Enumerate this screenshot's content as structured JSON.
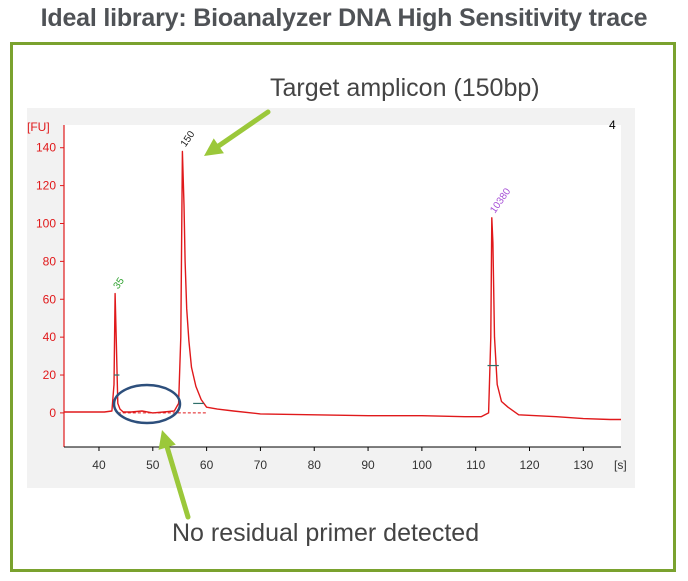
{
  "slide": {
    "title": "Ideal library: Bioanalyzer DNA High Sensitivity trace",
    "callout_target": "Target amplicon (150bp)",
    "callout_primer": "No residual primer detected"
  },
  "colors": {
    "frame": "#7aa22e",
    "arrow": "#9bc83a",
    "trace": "#e0191b",
    "y_axis": "#e0191b",
    "ellipse": "#2d4f7c",
    "marker_lower": "#2ca02c",
    "marker_upper": "#a64fd6",
    "title_text": "#4f5256"
  },
  "chart_data": {
    "type": "line",
    "ylabel": "[FU]",
    "xlabel": "[s]",
    "corner_label": "4",
    "xlim": [
      33.5,
      137
    ],
    "ylim": [
      -18,
      152
    ],
    "x_ticks": [
      40,
      50,
      60,
      70,
      80,
      90,
      100,
      110,
      120,
      130
    ],
    "y_ticks": [
      0,
      20,
      40,
      60,
      80,
      100,
      120,
      140
    ],
    "grid": false,
    "series": [
      {
        "x": [
          33.5,
          38,
          41,
          42.4,
          42.8,
          43.0,
          43.2,
          43.5,
          43.9,
          44.5,
          46,
          48,
          50,
          52,
          54,
          54.8,
          55.2,
          55.5,
          55.8,
          56.0,
          56.3,
          56.7,
          57.2,
          58,
          59,
          60,
          62,
          65,
          70,
          80,
          90,
          100,
          108,
          111,
          112.4,
          112.8,
          113.0,
          113.2,
          113.5,
          114.0,
          114.8,
          116,
          118,
          125,
          130,
          135,
          137
        ],
        "y": [
          0.5,
          0.5,
          0.5,
          1,
          15,
          63,
          40,
          5,
          2,
          0.5,
          0.5,
          1,
          0,
          0.5,
          1,
          5,
          40,
          138,
          110,
          80,
          55,
          38,
          24,
          14,
          7,
          3,
          2,
          1,
          -0.5,
          -1,
          -1.5,
          -1.5,
          -2,
          -2,
          0,
          40,
          103,
          90,
          40,
          15,
          6,
          3,
          -1,
          -2,
          -3,
          -3.5,
          -3.5
        ]
      }
    ],
    "peaks": [
      {
        "label": "35",
        "x": 43.0,
        "y": 63
      },
      {
        "label": "150",
        "x": 55.5,
        "y": 138
      },
      {
        "label": "10380",
        "x": 113.0,
        "y": 103
      }
    ],
    "baseline_y": 0,
    "baseline_from_x": 43.5,
    "baseline_to_x": 60,
    "region_bars": [
      {
        "x_from": 42.8,
        "x_to": 43.8,
        "y": 20
      },
      {
        "x_from": 57.5,
        "x_to": 59.5,
        "y": 5
      },
      {
        "x_from": 112.2,
        "x_to": 114.3,
        "y": 25
      }
    ]
  }
}
